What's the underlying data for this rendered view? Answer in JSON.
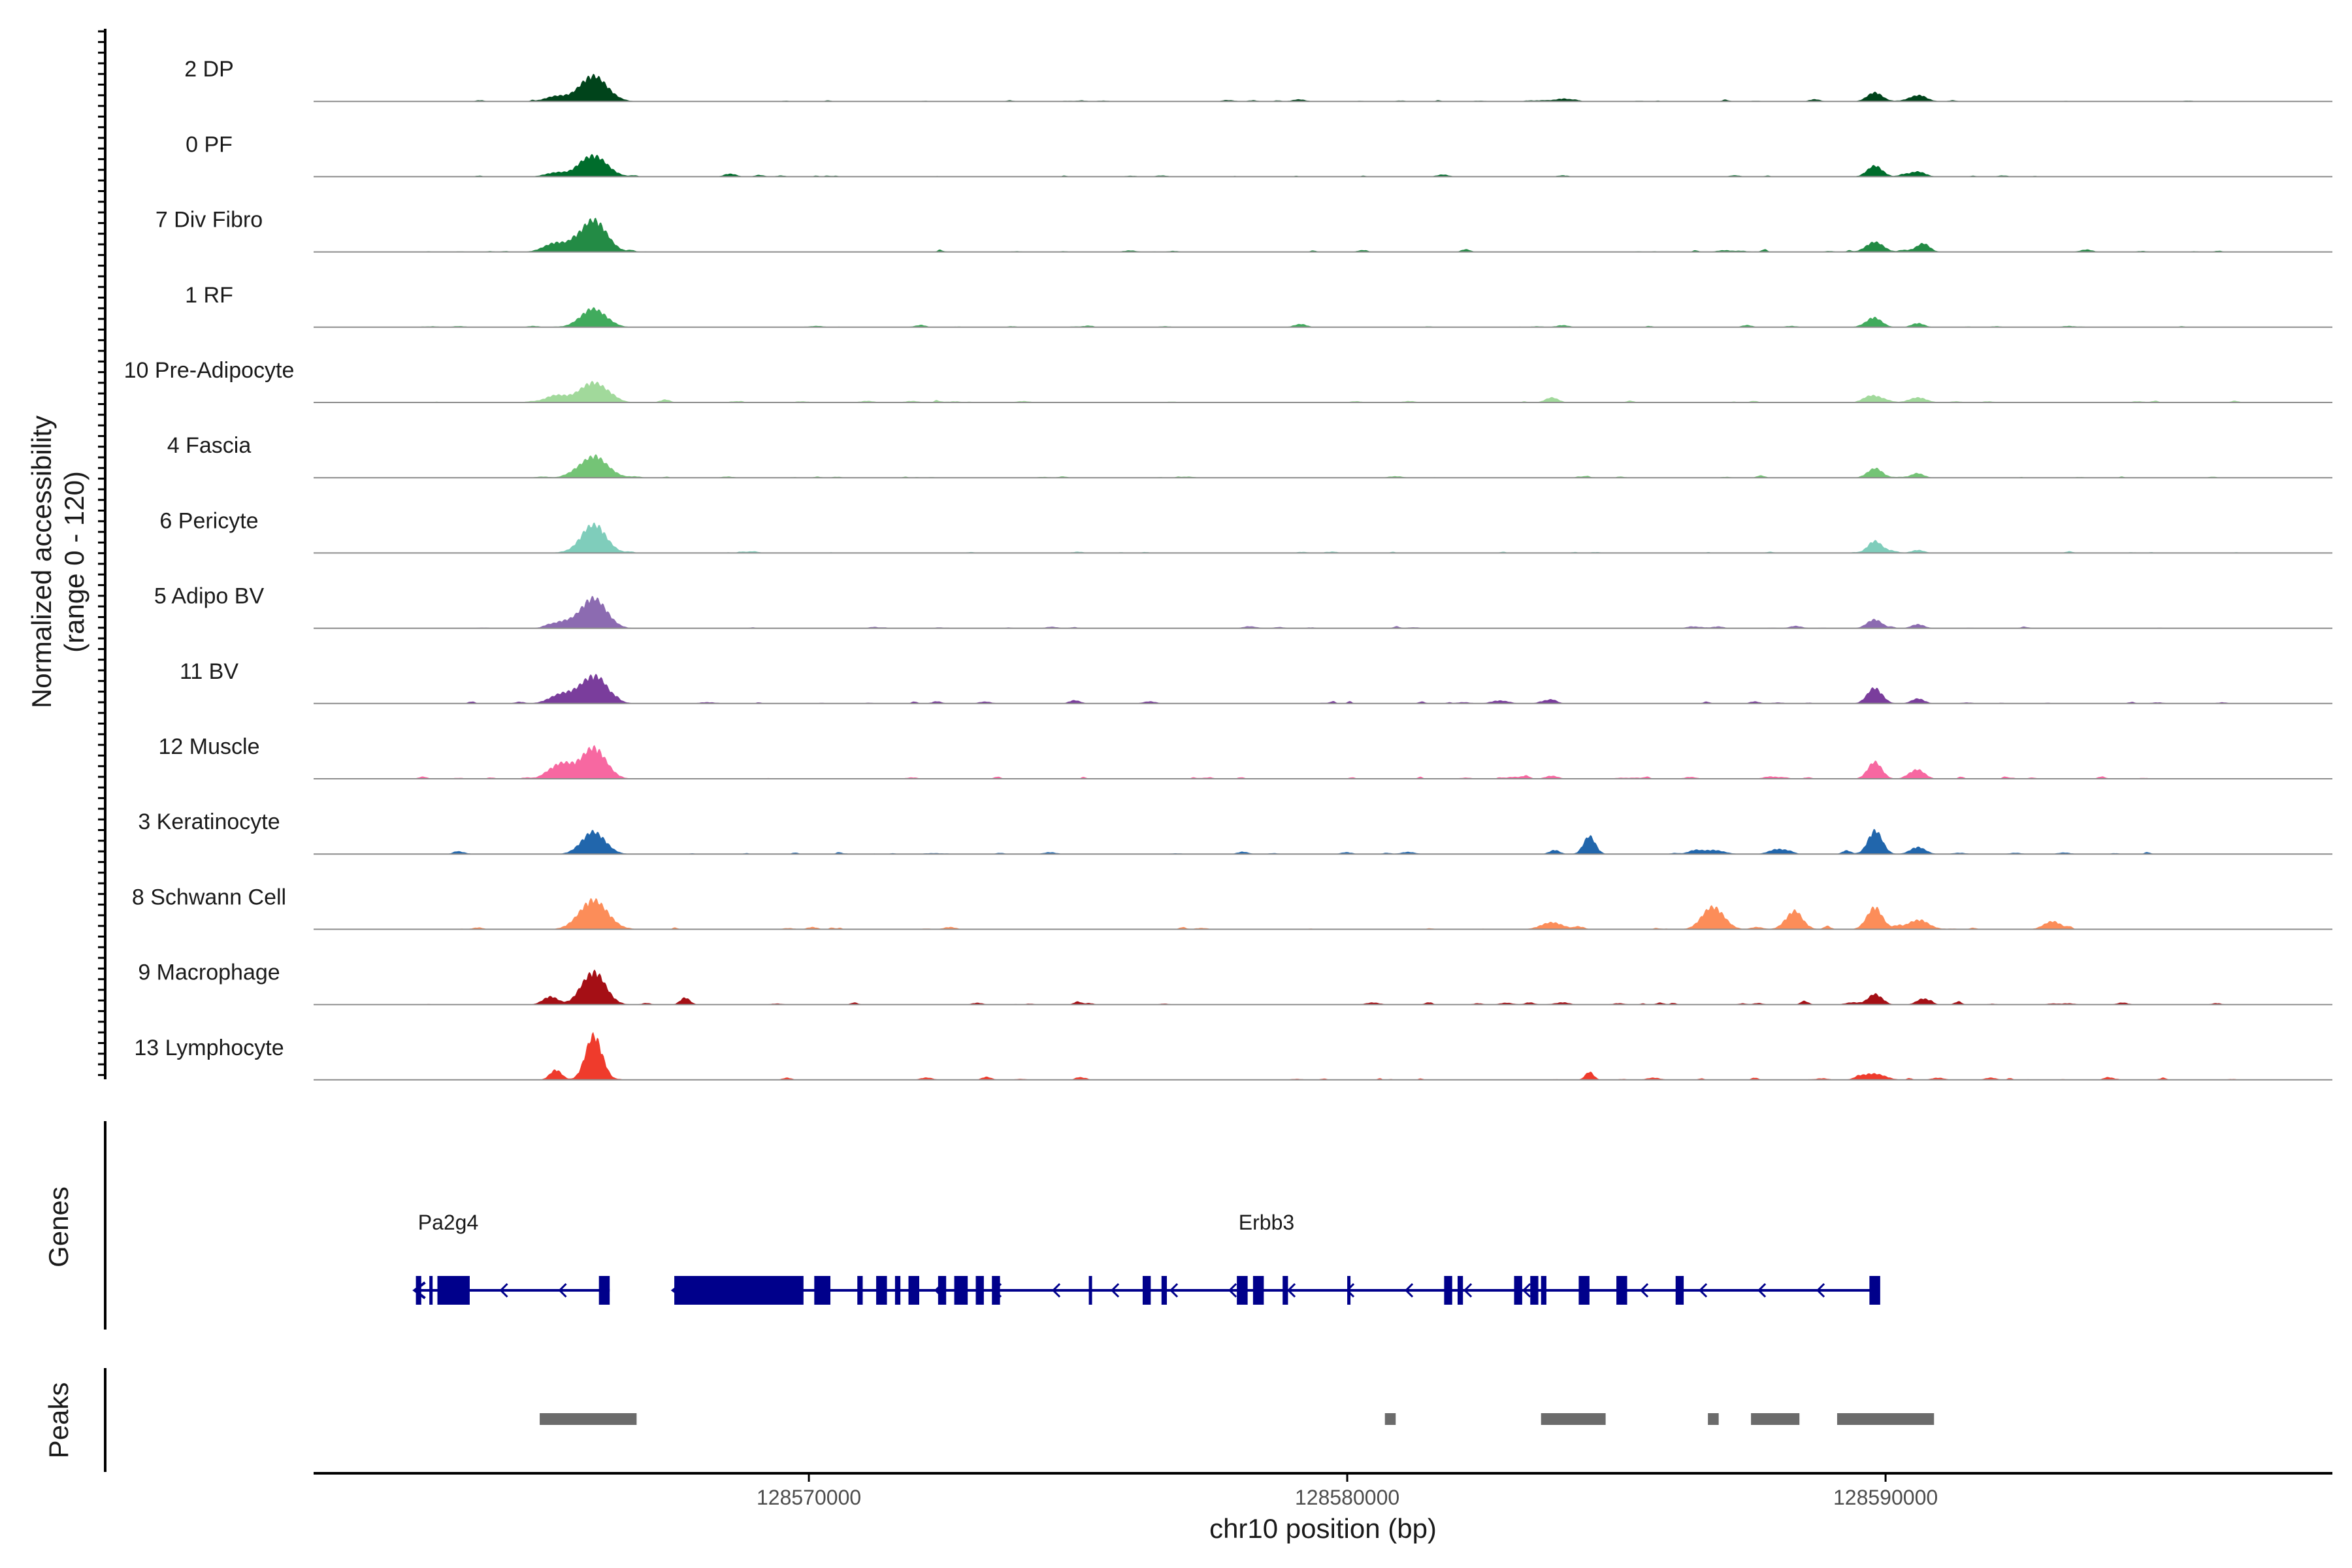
{
  "chart_data": {
    "type": "area",
    "ylabel": "Normalized accessibility",
    "ylabel_range": "(range 0 - 120)",
    "xlabel": "chr10 position (bp)",
    "xlim": [
      128560800,
      128598300
    ],
    "ylim": [
      0,
      120
    ],
    "x_ticks": [
      128570000,
      128580000,
      128590000
    ],
    "x_tick_labels": [
      "128570000",
      "128580000",
      "128590000"
    ],
    "grid": false,
    "legend": "none",
    "panel_titles": {
      "genes": "Genes",
      "peaks": "Peaks"
    },
    "tracks": [
      {
        "name": "2 DP",
        "color": "#00441b",
        "peaks": [
          [
            128566000,
            48,
            260
          ],
          [
            128565300,
            10,
            200
          ],
          [
            128589800,
            18,
            140
          ],
          [
            128590600,
            12,
            160
          ],
          [
            128579100,
            4,
            120
          ],
          [
            128584000,
            5,
            140
          ]
        ],
        "noise": 2,
        "seed": 11
      },
      {
        "name": "0 PF",
        "color": "#006d2c",
        "peaks": [
          [
            128566000,
            42,
            250
          ],
          [
            128589800,
            22,
            140
          ],
          [
            128590600,
            10,
            140
          ],
          [
            128565300,
            8,
            200
          ]
        ],
        "noise": 2,
        "seed": 12
      },
      {
        "name": "7 Div Fibro",
        "color": "#238b45",
        "peaks": [
          [
            128566000,
            64,
            240
          ],
          [
            128565300,
            18,
            220
          ],
          [
            128589800,
            20,
            160
          ],
          [
            128590700,
            17,
            120
          ]
        ],
        "noise": 3,
        "seed": 13
      },
      {
        "name": "1 RF",
        "color": "#41ab5d",
        "peaks": [
          [
            128566000,
            36,
            240
          ],
          [
            128589800,
            18,
            140
          ],
          [
            128590600,
            8,
            120
          ],
          [
            128579100,
            5,
            110
          ],
          [
            128584000,
            4,
            120
          ]
        ],
        "noise": 2,
        "seed": 14
      },
      {
        "name": "10 Pre-Adipocyte",
        "color": "#a1d99b",
        "peaks": [
          [
            128566000,
            40,
            260
          ],
          [
            128565300,
            14,
            200
          ],
          [
            128589800,
            12,
            160
          ],
          [
            128590600,
            10,
            160
          ],
          [
            128583800,
            10,
            120
          ]
        ],
        "noise": 3,
        "seed": 15
      },
      {
        "name": "4 Fascia",
        "color": "#74c476",
        "peaks": [
          [
            128566000,
            42,
            260
          ],
          [
            128589800,
            18,
            140
          ],
          [
            128590600,
            8,
            120
          ]
        ],
        "noise": 2,
        "seed": 16
      },
      {
        "name": "6 Pericyte",
        "color": "#7fcdbb",
        "peaks": [
          [
            128566000,
            56,
            230
          ],
          [
            128589800,
            24,
            130
          ],
          [
            128590600,
            6,
            120
          ]
        ],
        "noise": 2,
        "seed": 17
      },
      {
        "name": "5 Adipo BV",
        "color": "#8c6bb1",
        "peaks": [
          [
            128566000,
            60,
            240
          ],
          [
            128565400,
            12,
            200
          ],
          [
            128589800,
            16,
            140
          ],
          [
            128590600,
            8,
            120
          ]
        ],
        "noise": 2,
        "seed": 18
      },
      {
        "name": "11 BV",
        "color": "#7a3d9c",
        "peaks": [
          [
            128566000,
            54,
            250
          ],
          [
            128565400,
            18,
            220
          ],
          [
            128589800,
            30,
            140
          ],
          [
            128590600,
            10,
            120
          ],
          [
            128583800,
            8,
            100
          ]
        ],
        "noise": 4,
        "seed": 19
      },
      {
        "name": "12 Muscle",
        "color": "#f768a1",
        "peaks": [
          [
            128566000,
            62,
            230
          ],
          [
            128565400,
            30,
            200
          ],
          [
            128589800,
            34,
            130
          ],
          [
            128590600,
            18,
            130
          ],
          [
            128583800,
            6,
            120
          ]
        ],
        "noise": 4,
        "seed": 20
      },
      {
        "name": "3 Keratinocyte",
        "color": "#2166ac",
        "peaks": [
          [
            128566000,
            44,
            220
          ],
          [
            128584500,
            36,
            110
          ],
          [
            128589800,
            44,
            130
          ],
          [
            128590600,
            14,
            140
          ],
          [
            128588000,
            10,
            160
          ],
          [
            128586800,
            8,
            200
          ]
        ],
        "noise": 4,
        "seed": 21
      },
      {
        "name": "8 Schwann Cell",
        "color": "#fc8d59",
        "peaks": [
          [
            128566000,
            58,
            260
          ],
          [
            128586800,
            44,
            200
          ],
          [
            128588300,
            34,
            160
          ],
          [
            128589800,
            36,
            150
          ],
          [
            128590600,
            18,
            200
          ],
          [
            128583800,
            14,
            200
          ],
          [
            128593100,
            16,
            160
          ]
        ],
        "noise": 4,
        "seed": 22
      },
      {
        "name": "9 Macrophage",
        "color": "#a50f15",
        "peaks": [
          [
            128566000,
            64,
            220
          ],
          [
            128565200,
            16,
            140
          ],
          [
            128567700,
            14,
            90
          ],
          [
            128589800,
            20,
            130
          ],
          [
            128590700,
            12,
            120
          ]
        ],
        "noise": 4,
        "seed": 23
      },
      {
        "name": "13 Lymphocyte",
        "color": "#ef3b2c",
        "peaks": [
          [
            128566000,
            88,
            150
          ],
          [
            128565300,
            20,
            110
          ],
          [
            128584500,
            16,
            80
          ],
          [
            128589800,
            12,
            200
          ]
        ],
        "noise": 4,
        "seed": 24
      }
    ],
    "genes": [
      {
        "name": "Pa2g4",
        "label_x": 128563300,
        "strand": "-",
        "start": 128562700,
        "end": 128566300,
        "exons": [
          [
            128562700,
            128562800
          ],
          [
            128562950,
            128563000
          ],
          [
            128563100,
            128563700
          ],
          [
            128566100,
            128566300
          ]
        ]
      },
      {
        "name": "Erbb3",
        "label_x": 128578500,
        "strand": "-",
        "start": 128567500,
        "end": 128589800,
        "exons": [
          [
            128567500,
            128569900
          ],
          [
            128570100,
            128570400
          ],
          [
            128570900,
            128571000
          ],
          [
            128571250,
            128571450
          ],
          [
            128571600,
            128571700
          ],
          [
            128571850,
            128572050
          ],
          [
            128572400,
            128572550
          ],
          [
            128572700,
            128572950
          ],
          [
            128573100,
            128573250
          ],
          [
            128573400,
            128573550
          ],
          [
            128575200,
            128575250
          ],
          [
            128576200,
            128576350
          ],
          [
            128576550,
            128576650
          ],
          [
            128577950,
            128578150
          ],
          [
            128578250,
            128578450
          ],
          [
            128578800,
            128578900
          ],
          [
            128580000,
            128580050
          ],
          [
            128581800,
            128581950
          ],
          [
            128582050,
            128582150
          ],
          [
            128583100,
            128583250
          ],
          [
            128583400,
            128583550
          ],
          [
            128583600,
            128583700
          ],
          [
            128584300,
            128584500
          ],
          [
            128585000,
            128585200
          ],
          [
            128586100,
            128586250
          ],
          [
            128589700,
            128589900
          ]
        ]
      }
    ],
    "peaks": [
      [
        128565000,
        128566800
      ],
      [
        128580700,
        128580900
      ],
      [
        128583600,
        128584800
      ],
      [
        128586700,
        128586900
      ],
      [
        128587500,
        128588400
      ],
      [
        128589100,
        128590900
      ]
    ]
  }
}
